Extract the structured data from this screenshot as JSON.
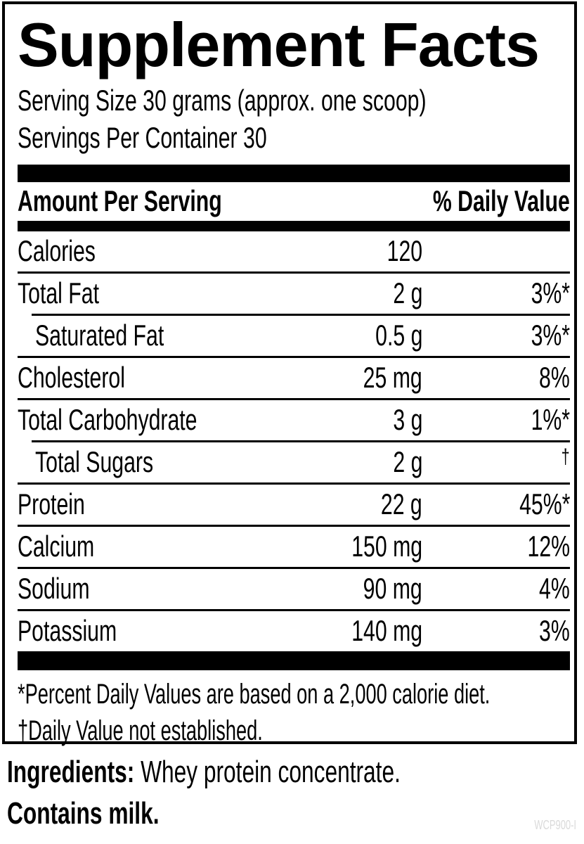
{
  "label": {
    "title": "Supplement Facts",
    "serving_size": "Serving Size 30 grams (approx. one scoop)",
    "servings_per_container": "Servings Per Container 30",
    "columns": {
      "amount_header": "Amount Per Serving",
      "dv_header": "% Daily Value"
    },
    "rows": [
      {
        "name": "Calories",
        "amount": "120",
        "dv": "",
        "indent": false
      },
      {
        "name": "Total Fat",
        "amount": "2 g",
        "dv": "3%*",
        "indent": false
      },
      {
        "name": "Saturated Fat",
        "amount": "0.5 g",
        "dv": "3%*",
        "indent": true
      },
      {
        "name": "Cholesterol",
        "amount": "25 mg",
        "dv": "8%",
        "indent": false
      },
      {
        "name": "Total Carbohydrate",
        "amount": "3 g",
        "dv": "1%*",
        "indent": false
      },
      {
        "name": "Total Sugars",
        "amount": "2 g",
        "dv": "†",
        "indent": true
      },
      {
        "name": "Protein",
        "amount": "22 g",
        "dv": "45%*",
        "indent": false
      },
      {
        "name": "Calcium",
        "amount": "150 mg",
        "dv": "12%",
        "indent": false
      },
      {
        "name": "Sodium",
        "amount": "90 mg",
        "dv": "4%",
        "indent": false
      },
      {
        "name": "Potassium",
        "amount": "140 mg",
        "dv": "3%",
        "indent": false
      }
    ],
    "footnotes": {
      "percent": "*Percent Daily Values are based on a 2,000 calorie diet.",
      "dagger": "†Daily Value not established."
    }
  },
  "ingredients": {
    "heading": "Ingredients:",
    "text": " Whey protein concentrate."
  },
  "allergen": "Contains milk.",
  "product_code": "WCP900-I"
}
